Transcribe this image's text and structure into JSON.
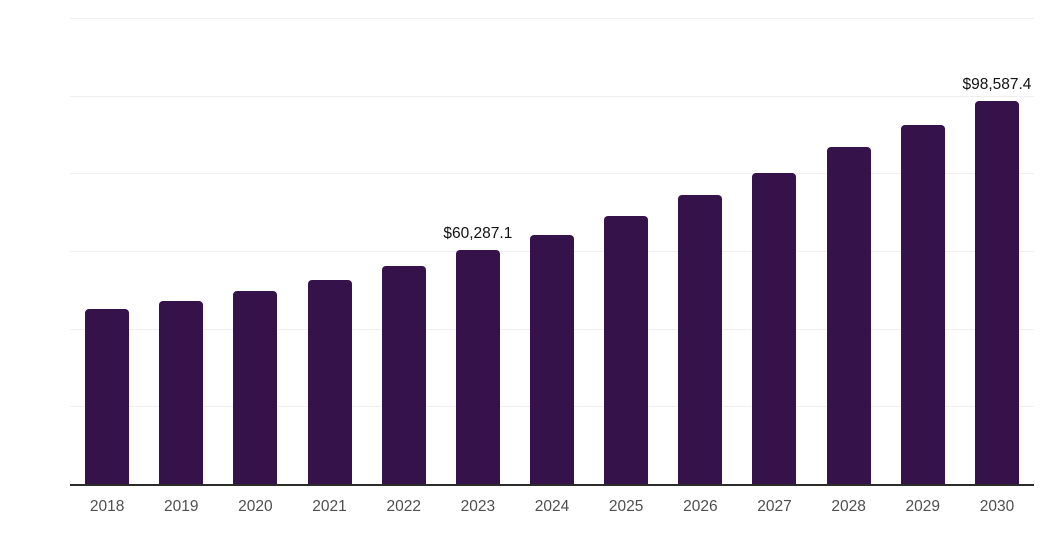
{
  "chart_data": {
    "type": "bar",
    "title": "",
    "xlabel": "",
    "ylabel": "",
    "categories": [
      "2018",
      "2019",
      "2020",
      "2021",
      "2022",
      "2023",
      "2024",
      "2025",
      "2026",
      "2027",
      "2028",
      "2029",
      "2030"
    ],
    "values": [
      45100,
      47100,
      49700,
      52500,
      56200,
      60287.1,
      64200,
      69100,
      74500,
      80000,
      86900,
      92400,
      98587.4
    ],
    "data_labels": [
      "",
      "",
      "",
      "",
      "",
      "$60,287.1",
      "",
      "",
      "",
      "",
      "",
      "",
      "$98,587.4"
    ],
    "ylim": [
      0,
      120000
    ],
    "gridline_interval": 20000,
    "grid": "horizontal-only",
    "legend": "none",
    "y_tick_labels_visible": false,
    "colors": {
      "bar": "#35124a",
      "gridline": "#efefef",
      "axis_line": "#2b2b2b",
      "tick_label": "#4f4f4f",
      "data_label": "#111111",
      "background": "#ffffff"
    }
  }
}
